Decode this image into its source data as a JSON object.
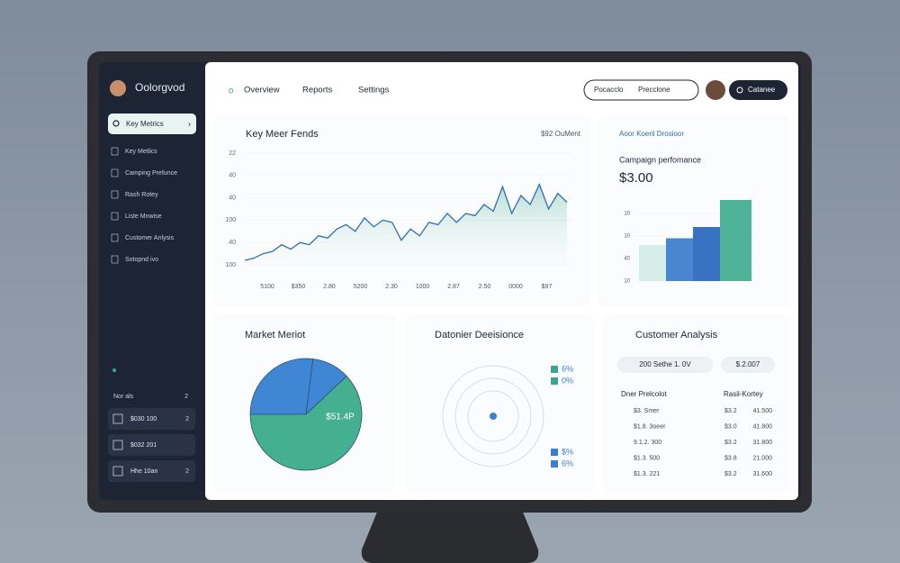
{
  "brand": "Oolorgvod",
  "sidebar": {
    "search": "Key Metrics",
    "items": [
      "Key Metlics",
      "Camping Prefunce",
      "Rash Rotey",
      "Liste Mnwise",
      "Customer Anlysis",
      "Sotopnd ivo"
    ],
    "section": {
      "title": "Nor als",
      "count": "2"
    },
    "rows": [
      {
        "label": "$030 100",
        "count": "2"
      },
      {
        "label": "$032 201"
      },
      {
        "label": "Hhe 10an",
        "count": "2"
      }
    ]
  },
  "nav": {
    "items": [
      "Overview",
      "Reports",
      "Settings"
    ],
    "search": [
      "Pocacclo",
      "Precclone"
    ],
    "button": "Catanee"
  },
  "trends": {
    "title": "Key Meer Fends",
    "note": "$92 OuMent",
    "x_labels": [
      "5100",
      "$350",
      "2.80",
      "5200",
      "2.30",
      "1000",
      "2.87",
      "2.50",
      "0000",
      "$97"
    ],
    "chart": {
      "type": "line",
      "color": "#2f6db0",
      "values": [
        0.2,
        0.3,
        0.5,
        0.6,
        0.9,
        0.7,
        1.0,
        0.9,
        1.3,
        1.2,
        1.6,
        1.8,
        1.5,
        2.1,
        1.7,
        2.0,
        1.9,
        1.1,
        1.6,
        1.3,
        1.9,
        1.8,
        2.3,
        1.9,
        2.3,
        2.2,
        2.7,
        2.4,
        3.5,
        2.3,
        3.1,
        2.7,
        3.6,
        2.5,
        3.2,
        2.8
      ],
      "ylim": [
        0,
        5
      ],
      "yticks": [
        {
          "value": 0,
          "label": "100"
        },
        {
          "value": 1,
          "label": "40"
        },
        {
          "value": 2,
          "label": "100"
        },
        {
          "value": 3,
          "label": "40"
        },
        {
          "value": 4,
          "label": "40"
        },
        {
          "value": 5,
          "label": "22"
        }
      ]
    }
  },
  "campaign": {
    "title": "Aoor Koenl Drosioor",
    "subtitle": "Campaign perfomance",
    "value": "$3.00",
    "chart": {
      "type": "bar",
      "values": [
        1.6,
        1.9,
        2.4,
        3.6
      ],
      "colors": [
        "#d6eee7",
        "#4a86d0",
        "#3a72c2",
        "#4fb39a"
      ],
      "ylim": [
        0,
        3.6
      ],
      "yticks": [
        {
          "value": 0,
          "label": "10"
        },
        {
          "value": 1,
          "label": "40"
        },
        {
          "value": 2,
          "label": "10"
        },
        {
          "value": 3,
          "label": "10"
        }
      ]
    }
  },
  "market": {
    "title": "Market Meriot",
    "chart": {
      "type": "pie",
      "values": [
        27,
        11,
        62
      ],
      "colors": [
        "#3f86d4",
        "#3f86d4",
        "#45b08f"
      ],
      "label": "$51.4P"
    }
  },
  "decision": {
    "title": "Datonier Deeisionce",
    "legend": [
      {
        "label": "6%",
        "color": "#3aa58c"
      },
      {
        "label": "0%",
        "color": "#3aa58c"
      },
      {
        "label": "$%",
        "color": "#3b7fd0"
      },
      {
        "label": "6%",
        "color": "#3b7fd0"
      }
    ]
  },
  "customer": {
    "title": "Customer Analysis",
    "pills": [
      "200 Sethe 1. 0V",
      "$.2.007"
    ],
    "headers": [
      "Dner Prelcolot",
      "Rasil-Kortey"
    ],
    "rows": [
      [
        "$3. Smer",
        "$3.2",
        "41.500"
      ],
      [
        "$1.8. 3oeer",
        "$3.0",
        "41.800"
      ],
      [
        "9.1.2. 300",
        "$3.2",
        "31.800"
      ],
      [
        "$1.3. 500",
        "$3.8",
        "21.000"
      ],
      [
        "$1.3. 221",
        "$3.2",
        "31.600"
      ]
    ]
  }
}
